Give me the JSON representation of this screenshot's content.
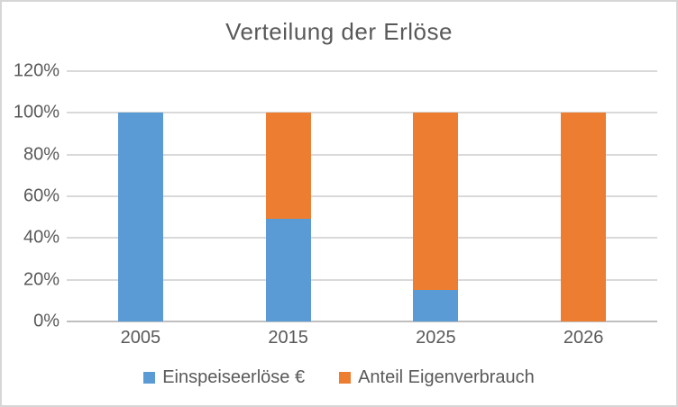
{
  "title": "Verteilung der Erlöse",
  "colors": {
    "series_blue": "#5B9BD5",
    "series_orange": "#ED7D31",
    "text_gray": "#595959",
    "gridline": "#D9D9D9",
    "axis_line": "#BFBFBF",
    "frame_border": "#D6D6D6",
    "background": "#FFFFFF"
  },
  "chart_data": {
    "type": "bar",
    "stacked": true,
    "title": "Verteilung der Erlöse",
    "categories": [
      "2005",
      "2015",
      "2025",
      "2026"
    ],
    "series": [
      {
        "name": "Einspeiseerlöse €",
        "color": "#5B9BD5",
        "values": [
          100,
          49,
          15,
          0
        ]
      },
      {
        "name": "Anteil Eigenverbrauch",
        "color": "#ED7D31",
        "values": [
          0,
          51,
          85,
          100
        ]
      }
    ],
    "xlabel": "",
    "ylabel": "",
    "ylim": [
      0,
      120
    ],
    "y_tick_step": 20,
    "y_tick_labels": [
      "0%",
      "20%",
      "40%",
      "60%",
      "80%",
      "100%",
      "120%"
    ],
    "grid": true,
    "legend_position": "bottom"
  }
}
